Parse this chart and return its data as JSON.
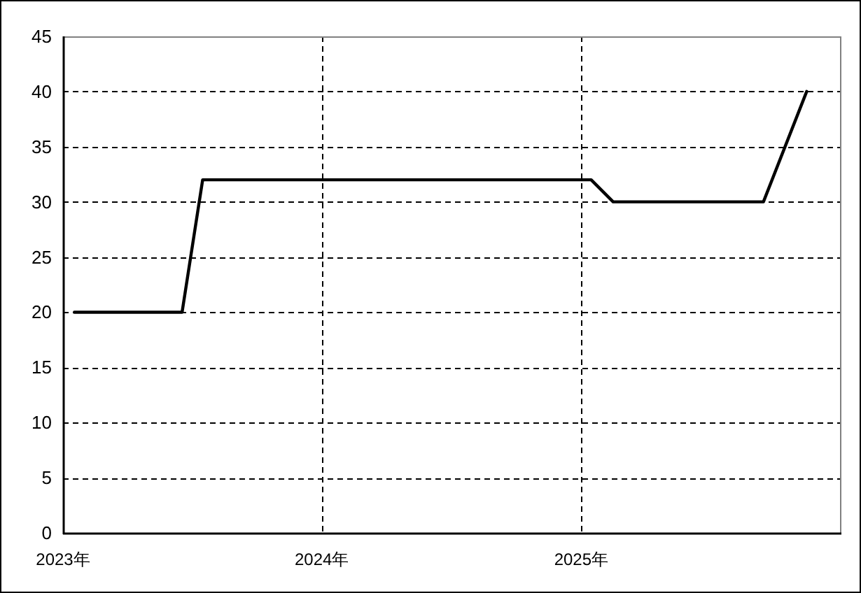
{
  "chart_data": {
    "type": "line",
    "x": [
      "2023-01-17",
      "2023-06-18",
      "2023-07-17",
      "2025-01-15",
      "2025-02-15",
      "2025-09-15",
      "2025-11-15"
    ],
    "series": [
      {
        "color": "#000000",
        "values": [
          20,
          20,
          32,
          32,
          30,
          30,
          40
        ]
      }
    ],
    "xlim": [
      "2023-01-01",
      "2026-01-01"
    ],
    "xticks": [
      {
        "value": "2023-01-01",
        "label": "2023年"
      },
      {
        "value": "2024-01-01",
        "label": "2024年"
      },
      {
        "value": "2025-01-01",
        "label": "2025年"
      }
    ],
    "ylim": [
      0,
      45
    ],
    "yticks": [
      0,
      5,
      10,
      15,
      20,
      25,
      30,
      35,
      40,
      45
    ],
    "grid": true,
    "line_style": "solid"
  }
}
